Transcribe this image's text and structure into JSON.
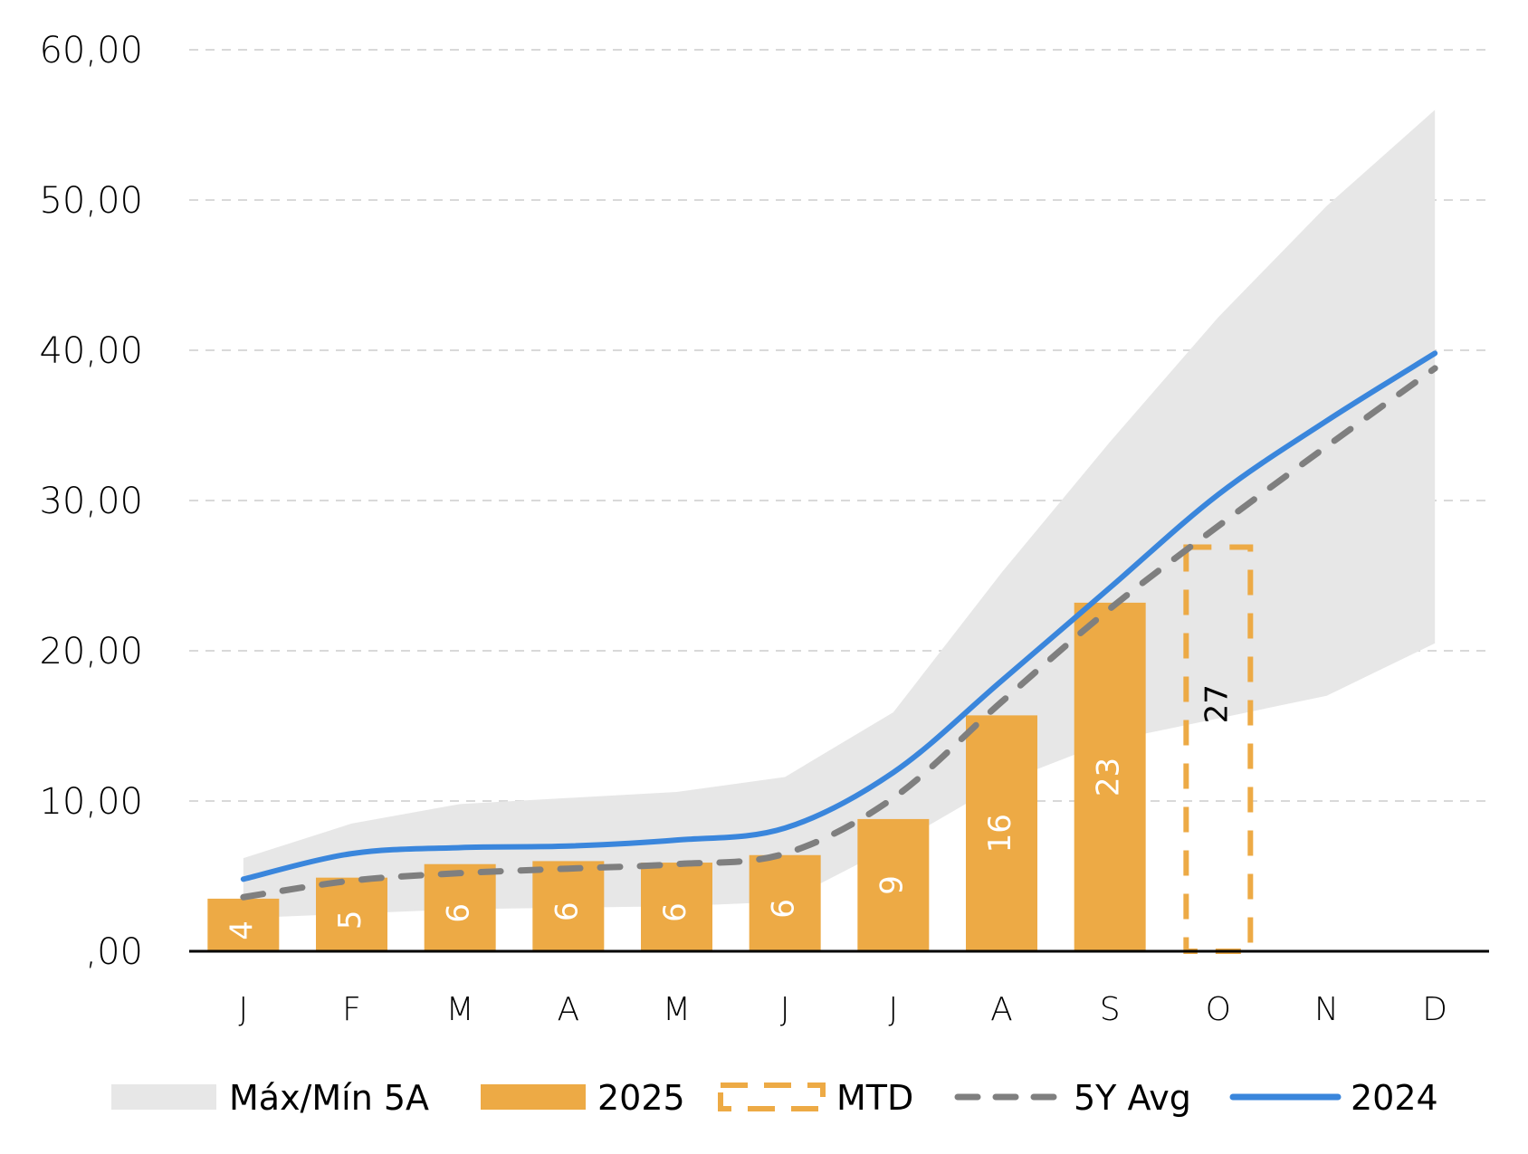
{
  "chart_data": {
    "type": "bar",
    "title": "",
    "xlabel": "",
    "ylabel": "",
    "ylim": [
      0,
      60
    ],
    "y_ticks": [
      0,
      10,
      20,
      30,
      40,
      50,
      60
    ],
    "y_tick_labels": [
      ",00",
      "10,00",
      "20,00",
      "30,00",
      "40,00",
      "50,00",
      "60,00"
    ],
    "grid": true,
    "legend_position": "bottom",
    "categories": [
      "J",
      "F",
      "M",
      "A",
      "M",
      "J",
      "J",
      "A",
      "S",
      "O",
      "N",
      "D"
    ],
    "colors": {
      "band": "#E7E7E7",
      "bar": "#EDAA45",
      "mtd": "#EDAA45",
      "avg": "#7F7F7F",
      "line2024": "#3A86DC",
      "grid": "#D9D9D9",
      "axis": "#000000"
    },
    "series": [
      {
        "name": "Máx/Mín 5A",
        "type": "band",
        "max": [
          6.2,
          8.5,
          9.8,
          10.2,
          10.6,
          11.6,
          15.9,
          25.2,
          33.9,
          42.2,
          49.6,
          56.0
        ],
        "min": [
          2.2,
          2.5,
          2.8,
          2.9,
          3.0,
          3.3,
          7.0,
          11.2,
          14.0,
          15.5,
          17.0,
          20.5
        ]
      },
      {
        "name": "2025",
        "type": "bar",
        "values": [
          3.5,
          4.9,
          5.8,
          6.0,
          5.9,
          6.4,
          8.8,
          15.7,
          23.2,
          null,
          null,
          null
        ],
        "labels": [
          "4",
          "5",
          "6",
          "6",
          "6",
          "6",
          "9",
          "16",
          "23",
          "",
          "",
          ""
        ]
      },
      {
        "name": "MTD",
        "type": "bar-dashed",
        "values": [
          null,
          null,
          null,
          null,
          null,
          null,
          null,
          null,
          null,
          26.9,
          null,
          null
        ],
        "labels": [
          "",
          "",
          "",
          "",
          "",
          "",
          "",
          "",
          "",
          "27",
          "",
          ""
        ]
      },
      {
        "name": "5Y Avg",
        "type": "line-dashed",
        "values": [
          3.6,
          4.7,
          5.2,
          5.5,
          5.8,
          6.5,
          10.2,
          16.6,
          22.8,
          28.3,
          33.6,
          38.8
        ]
      },
      {
        "name": "2024",
        "type": "line",
        "values": [
          4.8,
          6.5,
          6.9,
          7.0,
          7.4,
          8.2,
          11.9,
          18.0,
          24.2,
          30.4,
          35.3,
          39.8
        ]
      }
    ],
    "legend": [
      "Máx/Mín 5A",
      "2025",
      "MTD",
      "5Y Avg",
      "2024"
    ]
  }
}
